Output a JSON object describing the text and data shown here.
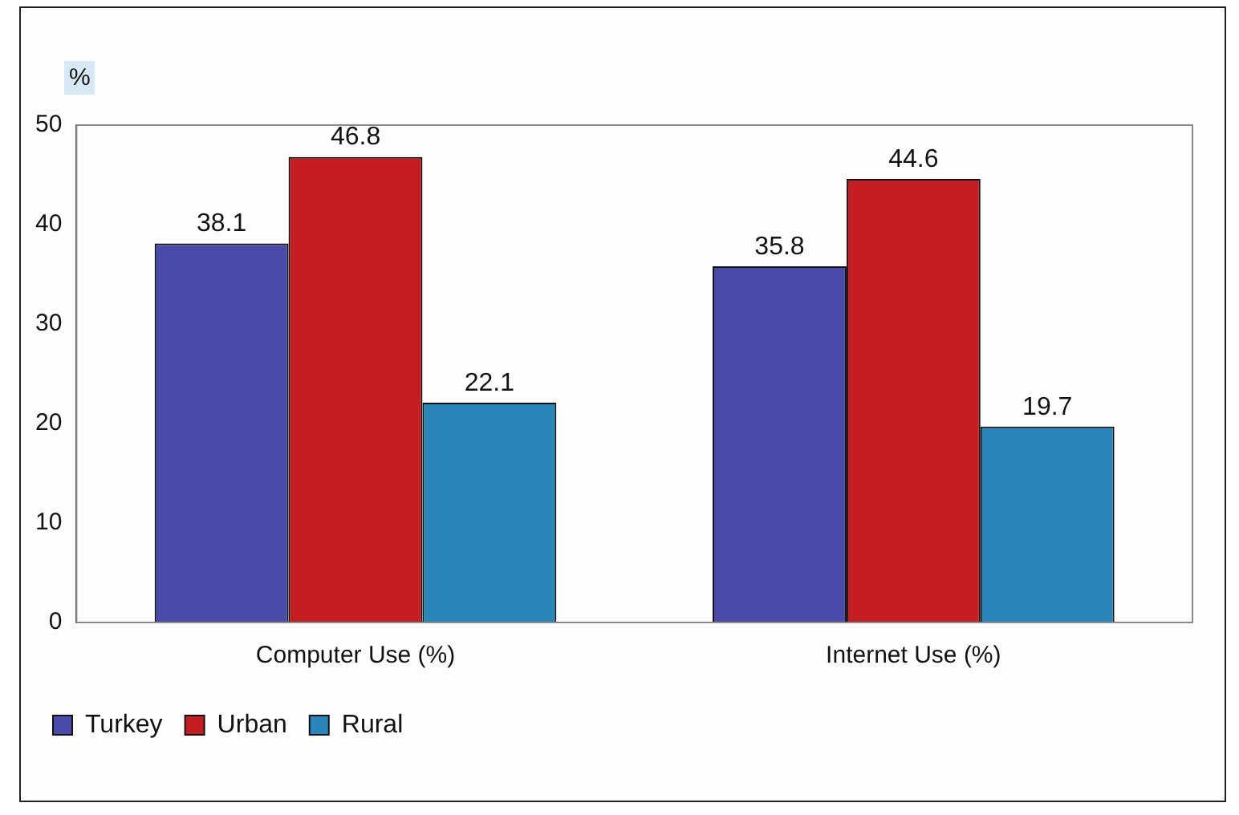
{
  "chart_data": {
    "type": "bar",
    "ylabel": "%",
    "categories": [
      "Computer Use (%)",
      "Internet Use (%)"
    ],
    "series": [
      {
        "name": "Turkey",
        "color": "#4a4aa8",
        "values": [
          38.1,
          35.8
        ]
      },
      {
        "name": "Urban",
        "color": "#c41e24",
        "values": [
          46.8,
          44.6
        ]
      },
      {
        "name": "Rural",
        "color": "#2a86b8",
        "values": [
          22.1,
          19.7
        ]
      }
    ],
    "ylim": [
      0,
      50
    ],
    "yticks": [
      0,
      10,
      20,
      30,
      40,
      50
    ],
    "grid": false,
    "legend": "bottom",
    "data_labels": true
  }
}
